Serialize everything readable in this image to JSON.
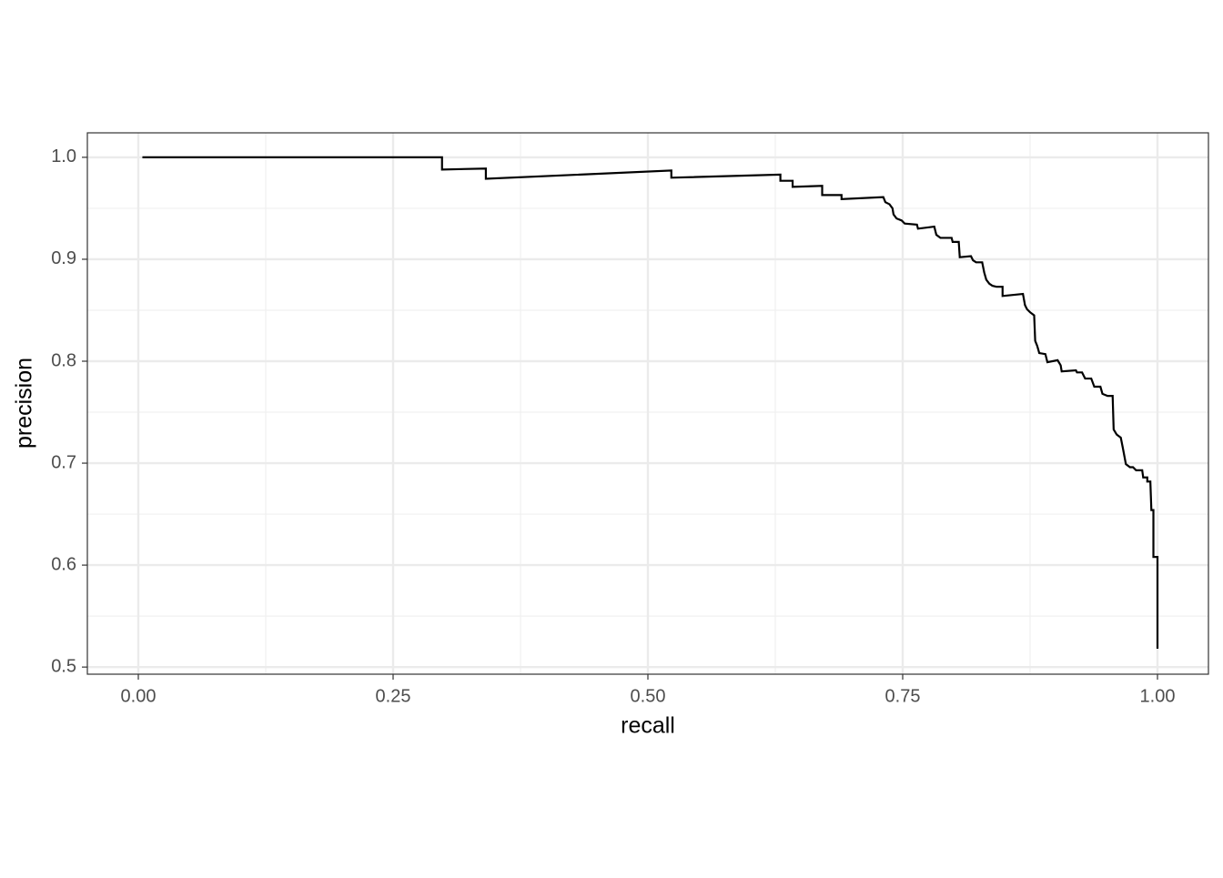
{
  "chart_data": {
    "type": "line",
    "xlabel": "recall",
    "ylabel": "precision",
    "x": [
      0.004,
      0.298,
      0.298,
      0.341,
      0.341,
      0.523,
      0.523,
      0.63,
      0.63,
      0.642,
      0.642,
      0.671,
      0.671,
      0.69,
      0.69,
      0.731,
      0.733,
      0.737,
      0.74,
      0.741,
      0.744,
      0.749,
      0.752,
      0.764,
      0.765,
      0.781,
      0.783,
      0.787,
      0.798,
      0.799,
      0.805,
      0.806,
      0.817,
      0.819,
      0.822,
      0.828,
      0.83,
      0.832,
      0.835,
      0.838,
      0.842,
      0.848,
      0.848,
      0.868,
      0.87,
      0.872,
      0.875,
      0.879,
      0.88,
      0.882,
      0.884,
      0.89,
      0.892,
      0.902,
      0.905,
      0.906,
      0.92,
      0.921,
      0.926,
      0.929,
      0.935,
      0.938,
      0.944,
      0.946,
      0.951,
      0.956,
      0.957,
      0.96,
      0.964,
      0.966,
      0.969,
      0.973,
      0.976,
      0.979,
      0.985,
      0.986,
      0.99,
      0.99,
      0.993,
      0.994,
      0.996,
      0.996,
      1.0,
      1.0
    ],
    "series": [
      {
        "color": "#000000",
        "values": [
          1.0,
          1.0,
          0.988,
          0.989,
          0.979,
          0.987,
          0.98,
          0.983,
          0.977,
          0.977,
          0.971,
          0.972,
          0.963,
          0.963,
          0.959,
          0.961,
          0.956,
          0.954,
          0.95,
          0.944,
          0.94,
          0.938,
          0.935,
          0.934,
          0.93,
          0.932,
          0.924,
          0.921,
          0.921,
          0.917,
          0.917,
          0.902,
          0.903,
          0.899,
          0.897,
          0.897,
          0.887,
          0.88,
          0.876,
          0.874,
          0.873,
          0.873,
          0.864,
          0.866,
          0.855,
          0.851,
          0.848,
          0.845,
          0.82,
          0.815,
          0.808,
          0.807,
          0.799,
          0.801,
          0.796,
          0.79,
          0.791,
          0.789,
          0.789,
          0.783,
          0.783,
          0.775,
          0.775,
          0.768,
          0.766,
          0.766,
          0.733,
          0.728,
          0.725,
          0.715,
          0.699,
          0.696,
          0.696,
          0.693,
          0.693,
          0.686,
          0.686,
          0.682,
          0.682,
          0.654,
          0.654,
          0.608,
          0.608,
          0.518
        ]
      }
    ],
    "xlim": [
      -0.05,
      1.05
    ],
    "ylim": [
      0.493,
      1.024
    ],
    "xticks": [
      {
        "value": 0,
        "label": "0.00"
      },
      {
        "value": 0.25,
        "label": "0.25"
      },
      {
        "value": 0.5,
        "label": "0.50"
      },
      {
        "value": 0.75,
        "label": "0.75"
      },
      {
        "value": 1,
        "label": "1.00"
      }
    ],
    "yticks": [
      0.5,
      0.6,
      0.7,
      0.8,
      0.9,
      {
        "value": 1,
        "label": "1.0"
      }
    ],
    "grid": true
  }
}
